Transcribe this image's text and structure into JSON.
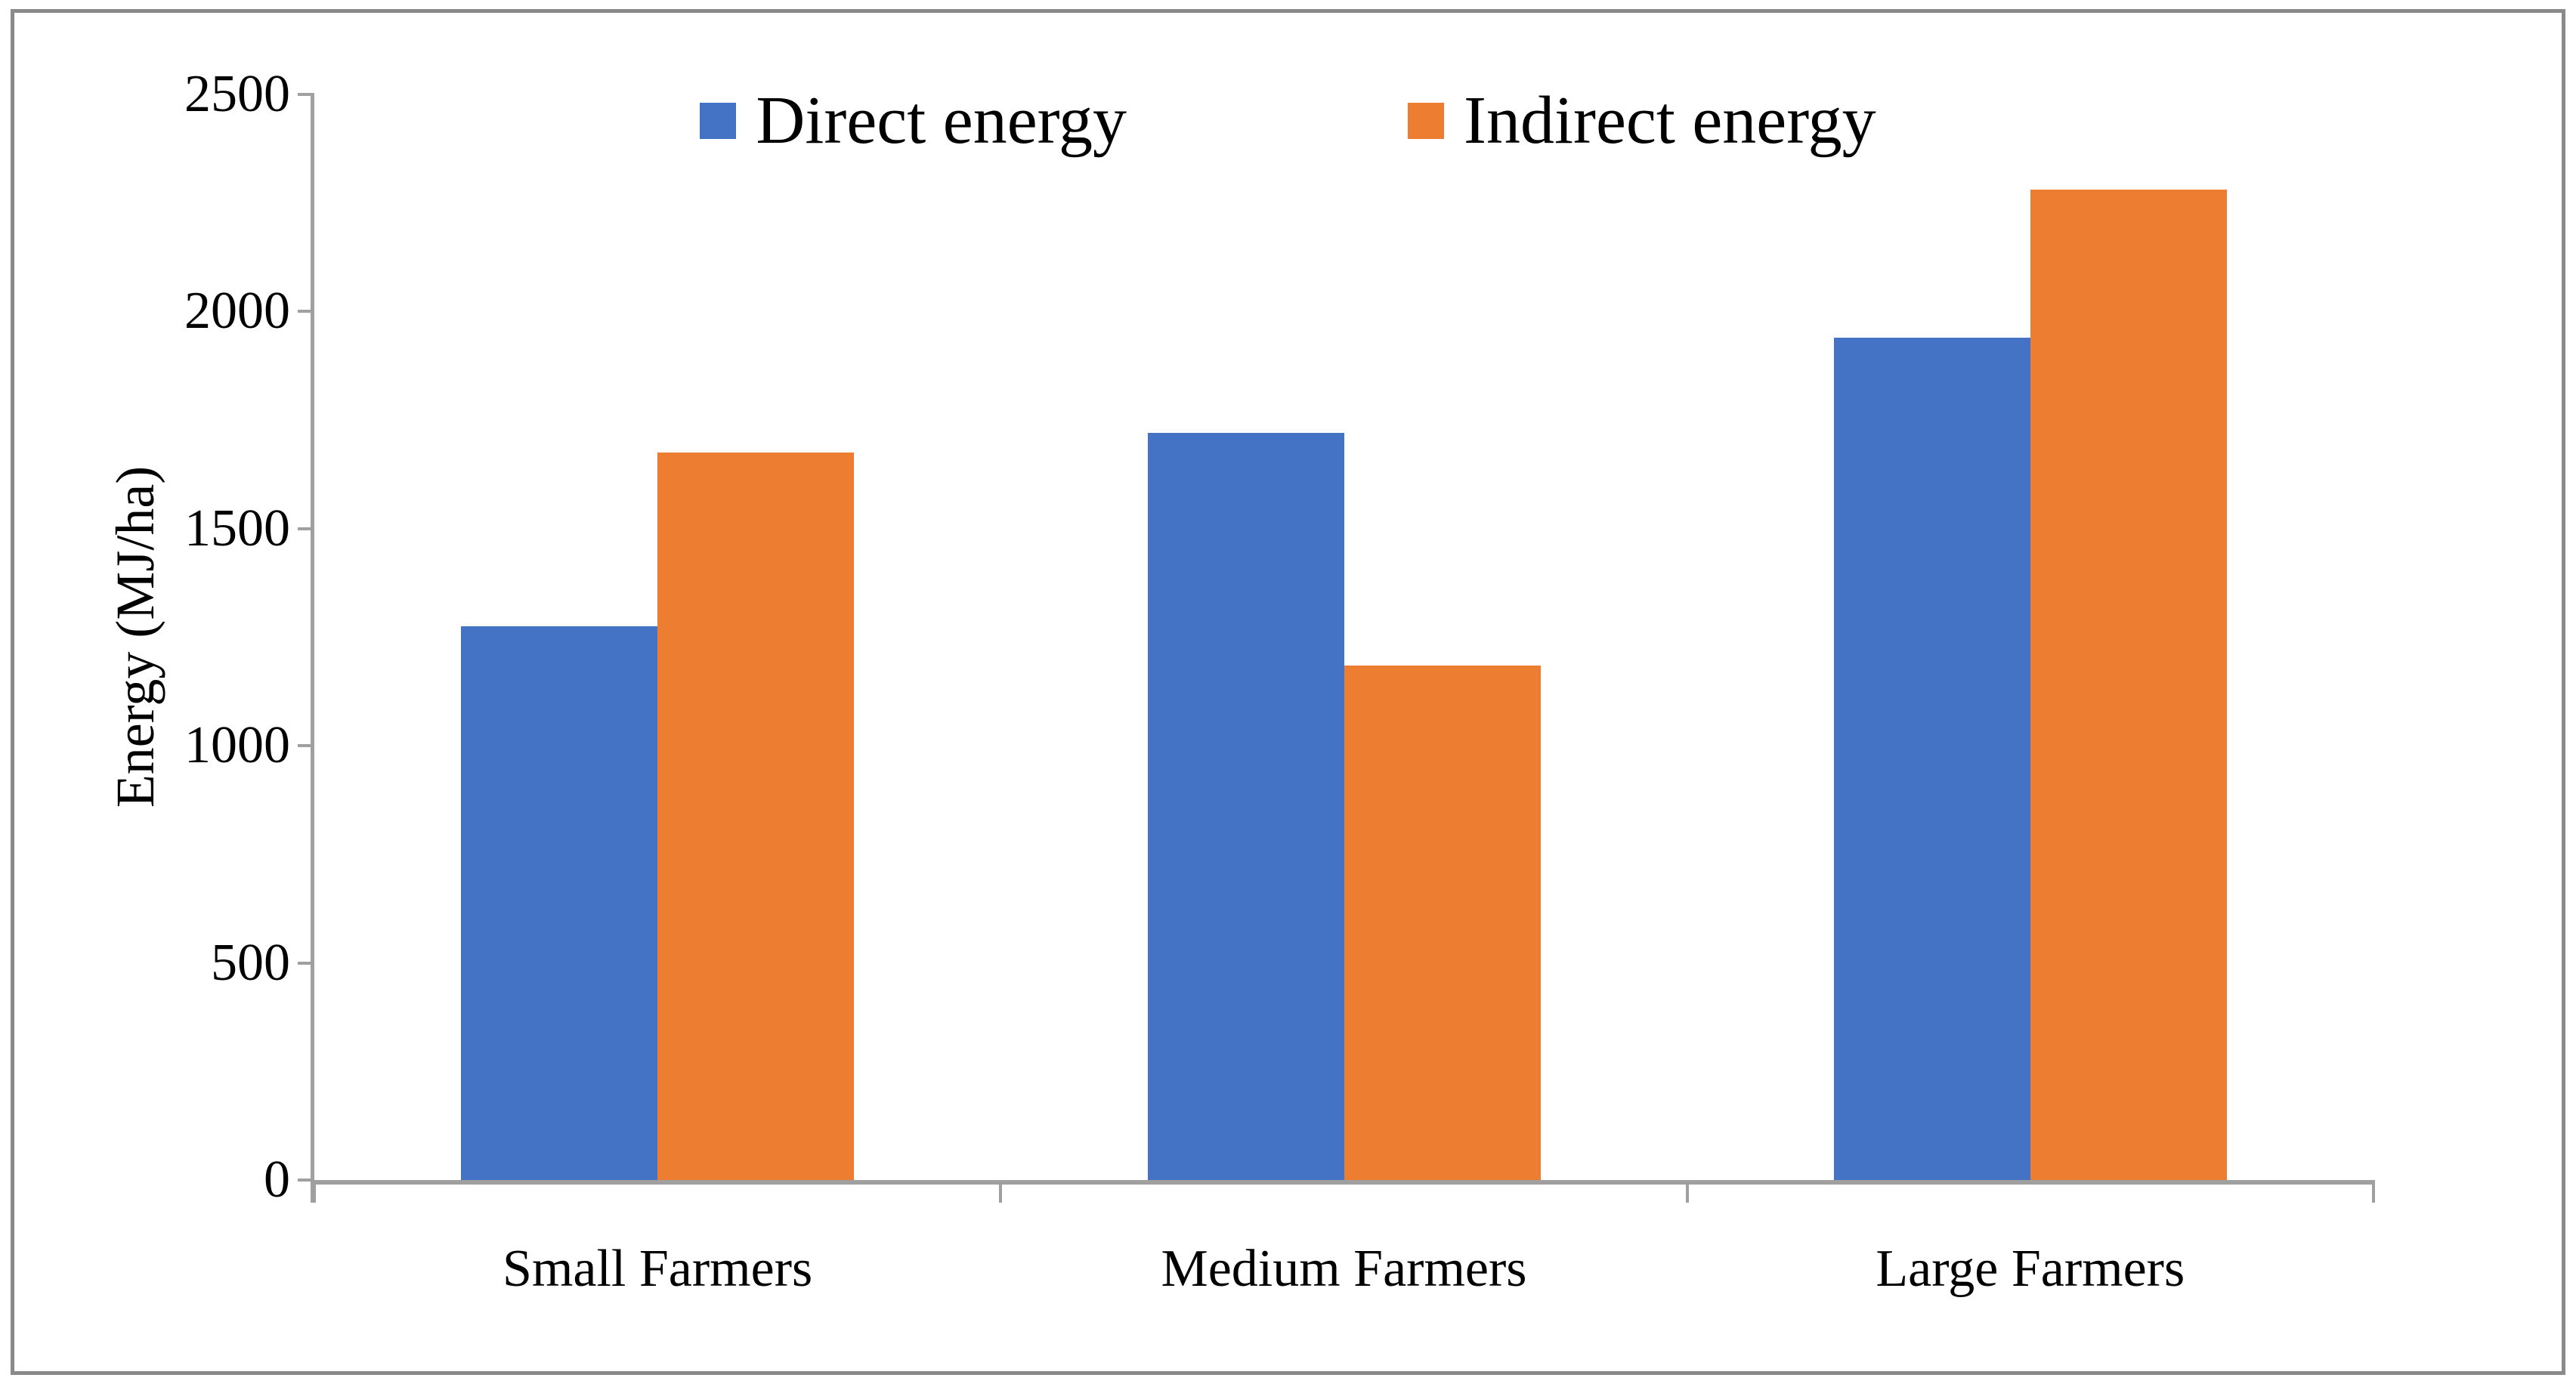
{
  "chart_data": {
    "type": "bar",
    "title": "",
    "categories": [
      "Small Farmers",
      "Medium Farmers",
      "Large Farmers"
    ],
    "series": [
      {
        "name": "Direct energy",
        "color": "#4472C4",
        "values": [
          1275,
          1720,
          1940
        ]
      },
      {
        "name": "Indirect energy",
        "color": "#ED7D31",
        "values": [
          1675,
          1185,
          2280
        ]
      }
    ],
    "xlabel": "",
    "ylabel": "Energy (MJ/ha)",
    "ylim": [
      0,
      2500
    ],
    "yticks": [
      0,
      500,
      1000,
      1500,
      2000,
      2500
    ],
    "grid": false,
    "legend_position": "top-center",
    "colors": {
      "direct": "#4472C4",
      "indirect": "#ED7D31",
      "axis": "#A0A0A0",
      "frame_border": "#8A8A8A",
      "background": "#FFFFFF",
      "text": "#000000"
    }
  }
}
